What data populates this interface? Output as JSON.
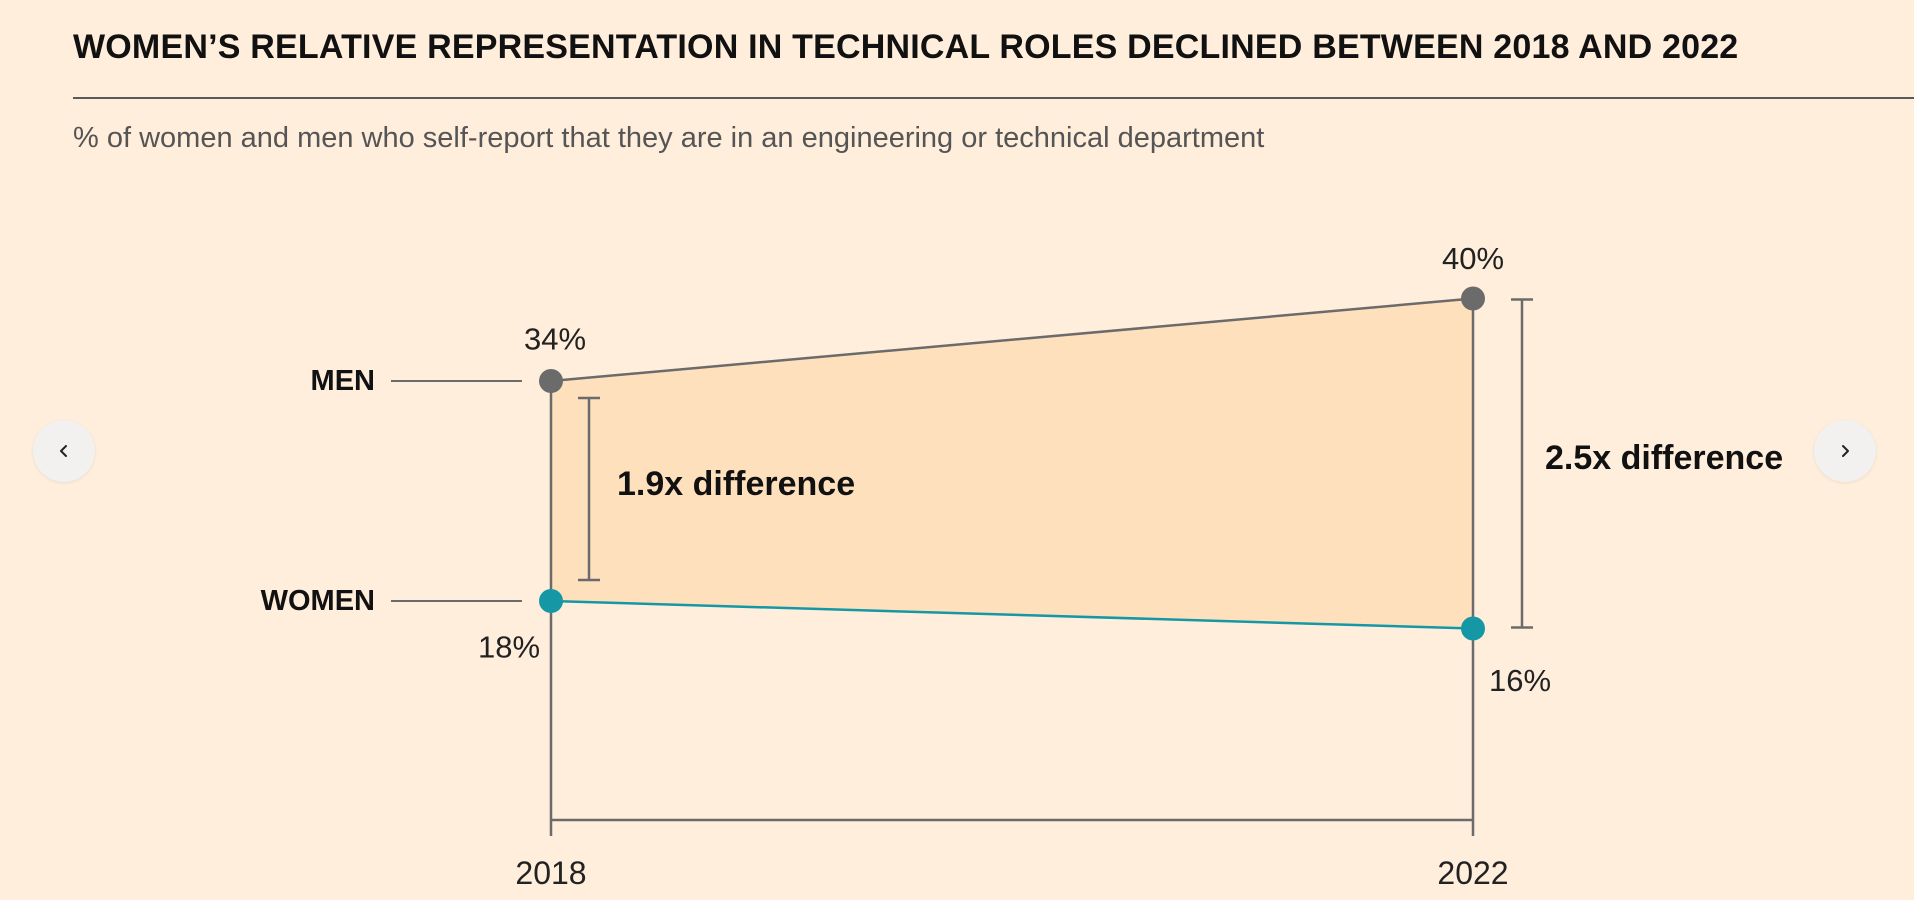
{
  "header": {
    "title": "WOMEN’S RELATIVE REPRESENTATION IN TECHNICAL ROLES DECLINED BETWEEN 2018 AND 2022",
    "subtitle": "% of women and men who self-report that they are in an engineering or technical department"
  },
  "navigation": {
    "prev_icon": "chevron-left-icon",
    "next_icon": "chevron-right-icon"
  },
  "colors": {
    "background": "#FFEEDC",
    "men": "#6B6B6B",
    "women": "#1597A6",
    "fill": "#FFE0BD",
    "axis": "#6B6B6B"
  },
  "chart_data": {
    "type": "line",
    "title": "WOMEN’S RELATIVE REPRESENTATION IN TECHNICAL ROLES DECLINED BETWEEN 2018 AND 2022",
    "subtitle": "% of women and men who self-report that they are in an engineering or technical department",
    "x": [
      "2018",
      "2022"
    ],
    "ylim": [
      0,
      45
    ],
    "series": [
      {
        "name": "MEN",
        "values": [
          34,
          40
        ],
        "labels": [
          "34%",
          "40%"
        ]
      },
      {
        "name": "WOMEN",
        "values": [
          18,
          16
        ],
        "labels": [
          "18%",
          "16%"
        ]
      }
    ],
    "annotations": [
      {
        "x": "2018",
        "text": "1.9x difference"
      },
      {
        "x": "2022",
        "text": "2.5x difference"
      }
    ],
    "grid": false,
    "legend": "left"
  }
}
